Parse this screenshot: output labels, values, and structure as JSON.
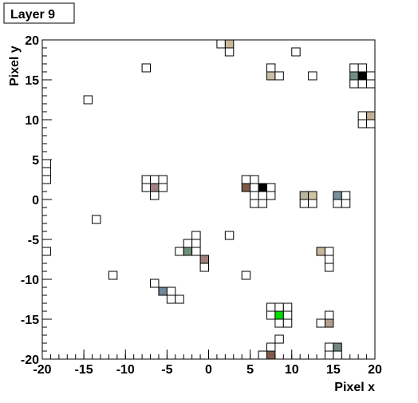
{
  "chart_data": {
    "type": "cells",
    "title": "Layer 9",
    "x_label": "Pixel x",
    "y_label": "Pixel y",
    "xlim": [
      -20,
      20
    ],
    "ylim": [
      -20,
      20
    ],
    "xticks": [
      -20,
      -15,
      -10,
      -5,
      0,
      5,
      10,
      15,
      20
    ],
    "yticks": [
      -20,
      -15,
      -10,
      -5,
      0,
      5,
      10,
      15,
      20
    ],
    "minor_step": 1,
    "cells": {
      "x": [
        1,
        2,
        2,
        -8,
        -15,
        10,
        7,
        7,
        8,
        12,
        17,
        18,
        17,
        18,
        19,
        17,
        18,
        19,
        18,
        19,
        18,
        19,
        -20,
        -20,
        -20,
        -20,
        -8,
        -7,
        -6,
        -8,
        -7,
        -6,
        -7,
        -14,
        4,
        5,
        4,
        5,
        6,
        7,
        5,
        6,
        7,
        5,
        6,
        11,
        12,
        11,
        12,
        15,
        16,
        15,
        16,
        -2,
        -3,
        -2,
        -4,
        -3,
        -2,
        -1,
        -1,
        2,
        -12,
        4,
        13,
        14,
        14,
        14,
        -7,
        -6,
        -5,
        -5,
        -4,
        7,
        8,
        9,
        7,
        8,
        9,
        8,
        9,
        14,
        13,
        14,
        8,
        7,
        6,
        7,
        14,
        15,
        14,
        15
      ],
      "y": [
        19,
        19,
        18,
        16,
        12,
        18,
        16,
        15,
        15,
        15,
        16,
        16,
        15,
        15,
        15,
        14,
        14,
        14,
        10,
        10,
        9,
        9,
        4,
        3,
        2,
        -7,
        2,
        2,
        2,
        1,
        1,
        1,
        0,
        -3,
        2,
        2,
        1,
        1,
        1,
        1,
        0,
        0,
        0,
        -1,
        -1,
        0,
        0,
        -1,
        -1,
        0,
        0,
        -1,
        -1,
        -5,
        -6,
        -6,
        -7,
        -7,
        -7,
        -8,
        -9,
        -5,
        -10,
        -10,
        -7,
        -7,
        -8,
        -9,
        -11,
        -12,
        -12,
        -13,
        -13,
        -14,
        -14,
        -14,
        -15,
        -15,
        -15,
        -16,
        -16,
        -15,
        -16,
        -16,
        -18,
        -19,
        -20,
        -20,
        -19,
        -19,
        -20,
        -20
      ],
      "color": [
        "#ffffff",
        "#c9b79c",
        "#ffffff",
        "#ffffff",
        "#ffffff",
        "#ffffff",
        "#ffffff",
        "#c9bfa6",
        "#ffffff",
        "#ffffff",
        "#ffffff",
        "#ffffff",
        "#6f8f80",
        "#000000",
        "#ffffff",
        "#ffffff",
        "#ffffff",
        "#ffffff",
        "#ffffff",
        "#c3af98",
        "#ffffff",
        "#ffffff",
        "#ffffff",
        "#ffffff",
        "#ffffff",
        "#ffffff",
        "#ffffff",
        "#ffffff",
        "#ffffff",
        "#ffffff",
        "#a08080",
        "#ffffff",
        "#ffffff",
        "#ffffff",
        "#ffffff",
        "#ffffff",
        "#7f5a4a",
        "#ffffff",
        "#000000",
        "#ffffff",
        "#ffffff",
        "#ffffff",
        "#ffffff",
        "#ffffff",
        "#ffffff",
        "#b8b4a0",
        "#cfc3a3",
        "#ffffff",
        "#ffffff",
        "#7890a0",
        "#ffffff",
        "#ffffff",
        "#ffffff",
        "#ffffff",
        "#ffffff",
        "#ffffff",
        "#ffffff",
        "#6f8f78",
        "#ffffff",
        "#a08078",
        "#ffffff",
        "#ffffff",
        "#ffffff",
        "#ffffff",
        "#c8b89a",
        "#ffffff",
        "#ffffff",
        "#ffffff",
        "#ffffff",
        "#708898",
        "#ffffff",
        "#ffffff",
        "#ffffff",
        "#ffffff",
        "#ffffff",
        "#ffffff",
        "#ffffff",
        "#00e000",
        "#ffffff",
        "#ffffff",
        "#ffffff",
        "#ffffff",
        "#ffffff",
        "#b09e90",
        "#ffffff",
        "#ffffff",
        "#ffffff",
        "#7f5a4a",
        "#ffffff",
        "#708880",
        "#ffffff",
        "#ffffff"
      ]
    }
  }
}
